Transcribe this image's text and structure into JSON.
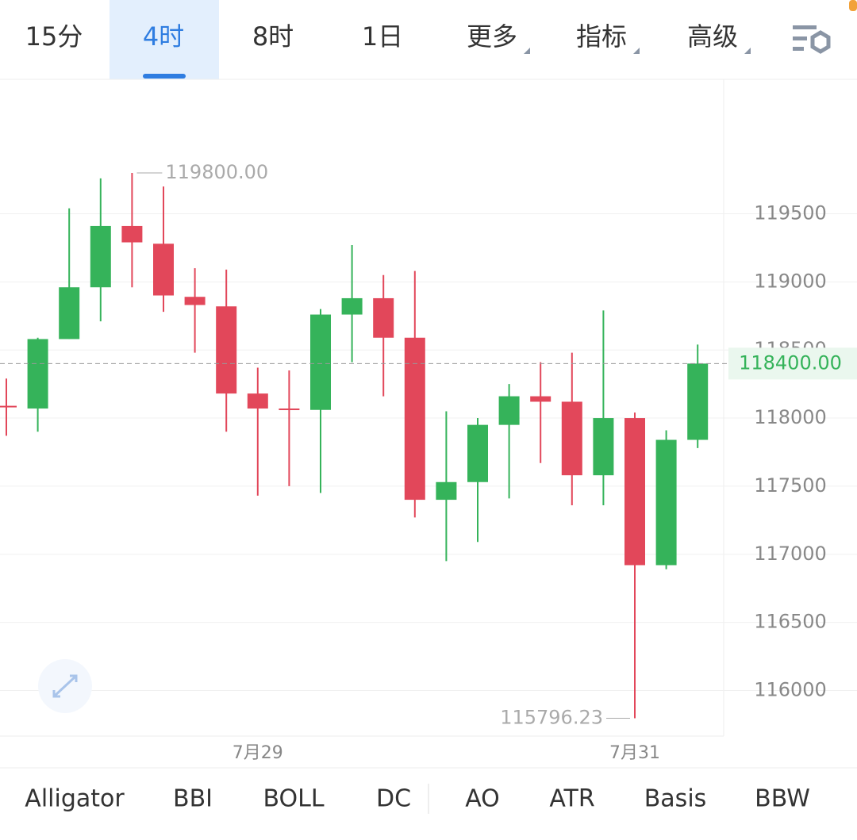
{
  "toolbar": {
    "tabs": [
      "15分",
      "4时",
      "8时",
      "1日",
      "更多",
      "指标",
      "高级"
    ]
  },
  "chart_data": {
    "type": "candlestick",
    "categories": [
      null,
      null,
      null,
      null,
      null,
      null,
      null,
      null,
      "7月29",
      null,
      null,
      null,
      null,
      null,
      null,
      null,
      null,
      null,
      null,
      null,
      "7月31",
      null,
      null
    ],
    "open": [
      118090,
      118070,
      118580,
      118960,
      119410,
      119280,
      118890,
      118820,
      118180,
      118070,
      118060,
      118760,
      118880,
      118590,
      117400,
      117530,
      117950,
      118160,
      118120,
      117580,
      118000,
      116920,
      117840
    ],
    "high": [
      118290,
      118590,
      119540,
      119760,
      119800,
      119700,
      119100,
      119090,
      118370,
      118350,
      118800,
      119270,
      119050,
      119080,
      118050,
      118000,
      118250,
      118410,
      118480,
      118790,
      118040,
      117910,
      118540
    ],
    "low": [
      117870,
      117900,
      118580,
      118710,
      118960,
      118780,
      118480,
      117900,
      117430,
      117500,
      117450,
      118410,
      118160,
      117270,
      116950,
      117090,
      117410,
      117670,
      117360,
      117360,
      115796.23,
      116890,
      117780
    ],
    "close": [
      118080,
      118580,
      118960,
      119410,
      119290,
      118900,
      118830,
      118180,
      118070,
      118060,
      118760,
      118880,
      118590,
      117400,
      117530,
      117950,
      118160,
      118120,
      117580,
      118000,
      116920,
      117840,
      118400
    ],
    "up_color": "#35b35a",
    "down_color": "#e2475a",
    "ylim": [
      115665,
      120487
    ],
    "yticks": [
      116000,
      116500,
      117000,
      117500,
      118000,
      118500,
      119000,
      119500
    ],
    "grid": true,
    "high_label": "119800.00",
    "low_label": "115796.23",
    "last_price": {
      "value": 118400,
      "label": "118400.00"
    }
  },
  "indicators": [
    "Alligator",
    "BBI",
    "BOLL",
    "DC",
    "AO",
    "ATR",
    "Basis",
    "BBW"
  ]
}
